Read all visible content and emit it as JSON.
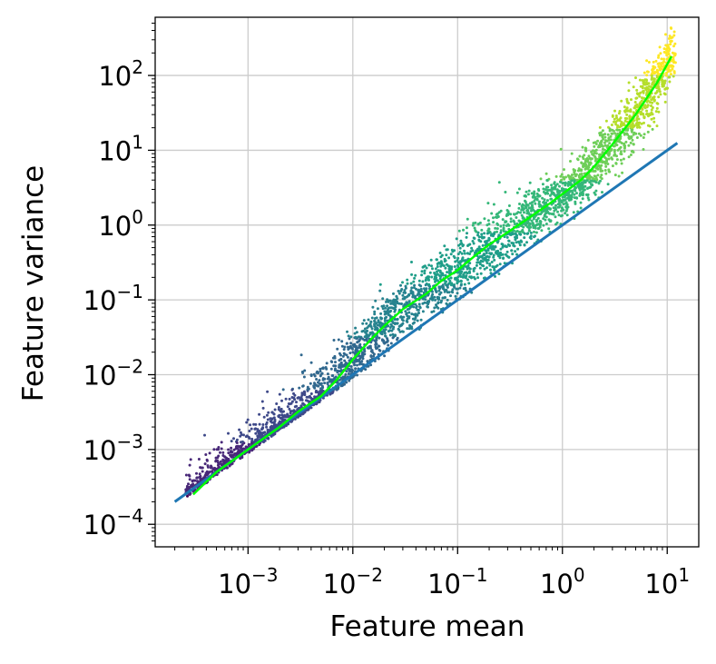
{
  "chart_data": {
    "type": "scatter",
    "title": "",
    "xlabel": "Feature mean",
    "ylabel": "Feature variance",
    "xscale": "log",
    "yscale": "log",
    "xlim": [
      0.00013,
      20
    ],
    "ylim": [
      5e-05,
      600
    ],
    "grid": true,
    "legend": "none",
    "x_ticks": [
      {
        "value": 0.001,
        "base": "10",
        "exp": "−3"
      },
      {
        "value": 0.01,
        "base": "10",
        "exp": "−2"
      },
      {
        "value": 0.1,
        "base": "10",
        "exp": "−1"
      },
      {
        "value": 1,
        "base": "10",
        "exp": "0"
      },
      {
        "value": 10,
        "base": "10",
        "exp": "1"
      }
    ],
    "y_ticks": [
      {
        "value": 0.0001,
        "base": "10",
        "exp": "−4"
      },
      {
        "value": 0.001,
        "base": "10",
        "exp": "−3"
      },
      {
        "value": 0.01,
        "base": "10",
        "exp": "−2"
      },
      {
        "value": 0.1,
        "base": "10",
        "exp": "−1"
      },
      {
        "value": 1,
        "base": "10",
        "exp": "0"
      },
      {
        "value": 10,
        "base": "10",
        "exp": "1"
      },
      {
        "value": 100,
        "base": "10",
        "exp": "2"
      }
    ],
    "scatter_point_count": 3500,
    "scatter_x_range": [
      0.00025,
      12
    ],
    "scatter_colormap": [
      "#440154",
      "#482878",
      "#3e4989",
      "#31688e",
      "#26828e",
      "#1f9e89",
      "#35b779",
      "#6ece58",
      "#b5de2b",
      "#fde725"
    ],
    "series": [
      {
        "type": "line",
        "color": "#1f77b4",
        "x": [
          0.0002,
          12.5
        ],
        "y": [
          0.0002,
          12.5
        ]
      },
      {
        "type": "line",
        "color": "#00ff00",
        "x": [
          0.0003,
          0.0005,
          0.001,
          0.002,
          0.003,
          0.005,
          0.007,
          0.01,
          0.015,
          0.02,
          0.03,
          0.05,
          0.07,
          0.1,
          0.15,
          0.2,
          0.3,
          0.5,
          0.7,
          1.0,
          1.5,
          2.0,
          3.0,
          5.0,
          8.0,
          11.0
        ],
        "y": [
          0.00025,
          0.0005,
          0.001,
          0.002,
          0.0032,
          0.0052,
          0.0085,
          0.016,
          0.03,
          0.045,
          0.075,
          0.12,
          0.18,
          0.25,
          0.4,
          0.55,
          0.8,
          1.3,
          1.8,
          2.6,
          4.0,
          6.0,
          12,
          30,
          80,
          180
        ]
      }
    ]
  }
}
